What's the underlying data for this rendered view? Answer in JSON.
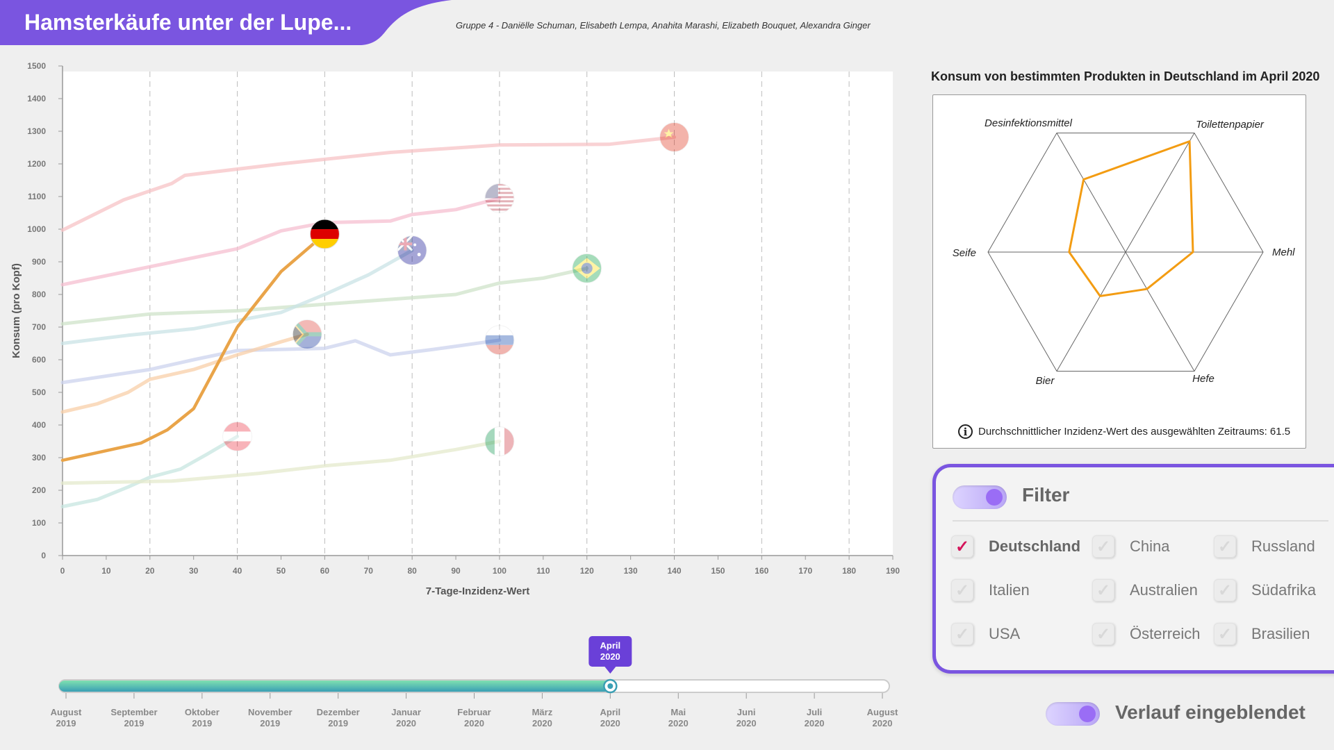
{
  "header": {
    "title": "Hamsterkäufe unter der Lupe...",
    "authors": "Gruppe 4 - Daniëlle Schuman, Elisabeth Lempa, Anahita Marashi, Elizabeth Bouquet, Alexandra Ginger",
    "banner_color": "#7a55e0"
  },
  "chart_data": [
    {
      "type": "line",
      "xlabel": "7-Tage-Inzidenz-Wert",
      "ylabel": "Konsum (pro Kopf)",
      "xlim": [
        0,
        190
      ],
      "ylim": [
        0,
        1500
      ],
      "x_ticks": [
        0,
        10,
        20,
        30,
        40,
        50,
        60,
        70,
        80,
        90,
        100,
        110,
        120,
        130,
        140,
        150,
        160,
        170,
        180,
        190
      ],
      "y_ticks": [
        0,
        100,
        200,
        300,
        400,
        500,
        600,
        700,
        800,
        900,
        1000,
        1100,
        1200,
        1300,
        1400,
        1500
      ],
      "grid": "vertical-dashed",
      "series": [
        {
          "country": "china",
          "color": "#f7c3c6",
          "highlight": false,
          "points": [
            [
              0,
              997
            ],
            [
              14,
              1090
            ],
            [
              25,
              1140
            ],
            [
              28,
              1165
            ],
            [
              50,
              1200
            ],
            [
              75,
              1235
            ],
            [
              100,
              1258
            ],
            [
              125,
              1260
            ],
            [
              140,
              1282
            ]
          ]
        },
        {
          "country": "usa",
          "color": "#f5bfd0",
          "highlight": false,
          "points": [
            [
              0,
              830
            ],
            [
              20,
              885
            ],
            [
              40,
              940
            ],
            [
              50,
              995
            ],
            [
              60,
              1020
            ],
            [
              75,
              1025
            ],
            [
              80,
              1045
            ],
            [
              90,
              1060
            ],
            [
              100,
              1095
            ]
          ]
        },
        {
          "country": "brasilien",
          "color": "#cfe3c9",
          "highlight": false,
          "points": [
            [
              0,
              710
            ],
            [
              20,
              740
            ],
            [
              40,
              750
            ],
            [
              60,
              770
            ],
            [
              80,
              790
            ],
            [
              90,
              800
            ],
            [
              100,
              835
            ],
            [
              110,
              850
            ],
            [
              120,
              880
            ]
          ]
        },
        {
          "country": "australien",
          "color": "#c9e3e6",
          "highlight": false,
          "points": [
            [
              0,
              650
            ],
            [
              15,
              675
            ],
            [
              30,
              695
            ],
            [
              40,
              720
            ],
            [
              50,
              745
            ],
            [
              60,
              800
            ],
            [
              70,
              860
            ],
            [
              80,
              935
            ]
          ]
        },
        {
          "country": "russland",
          "color": "#ccd3ee",
          "highlight": false,
          "points": [
            [
              0,
              530
            ],
            [
              20,
              570
            ],
            [
              30,
              600
            ],
            [
              40,
              628
            ],
            [
              60,
              635
            ],
            [
              67,
              658
            ],
            [
              75,
              615
            ],
            [
              85,
              632
            ],
            [
              100,
              660
            ]
          ]
        },
        {
          "country": "suedafrika",
          "color": "#f8cfa8",
          "highlight": false,
          "points": [
            [
              0,
              440
            ],
            [
              8,
              465
            ],
            [
              15,
              500
            ],
            [
              20,
              540
            ],
            [
              30,
              570
            ],
            [
              40,
              615
            ],
            [
              50,
              655
            ],
            [
              56,
              678
            ]
          ]
        },
        {
          "country": "oesterreich",
          "color": "#c7e6e0",
          "highlight": false,
          "points": [
            [
              0,
              150
            ],
            [
              8,
              172
            ],
            [
              15,
              210
            ],
            [
              20,
              240
            ],
            [
              27,
              265
            ],
            [
              33,
              310
            ],
            [
              40,
              365
            ]
          ]
        },
        {
          "country": "italien",
          "color": "#e4e9cc",
          "highlight": false,
          "points": [
            [
              0,
              222
            ],
            [
              25,
              228
            ],
            [
              45,
              252
            ],
            [
              60,
              275
            ],
            [
              75,
              292
            ],
            [
              90,
              325
            ],
            [
              100,
              350
            ]
          ]
        },
        {
          "country": "deutschland",
          "color": "#e9a449",
          "highlight": true,
          "points": [
            [
              0,
              292
            ],
            [
              18,
              345
            ],
            [
              24,
              385
            ],
            [
              30,
              450
            ],
            [
              40,
              700
            ],
            [
              50,
              870
            ],
            [
              60,
              985
            ]
          ]
        }
      ]
    },
    {
      "type": "radar",
      "title": "Konsum von bestimmten Produkten in Deutschland im April 2020",
      "axes": [
        "Desinfektionsmittel",
        "Toilettenpapier",
        "Mehl",
        "Hefe",
        "Bier",
        "Seife"
      ],
      "values": [
        0.61,
        0.93,
        0.49,
        0.31,
        0.37,
        0.41
      ],
      "color": "#f39c12",
      "info_text": "Durchschnittlicher Inzidenz-Wert des ausgewählten Zeitraums: 61.5"
    }
  ],
  "timeline": {
    "months": [
      {
        "m": "August",
        "y": "2019"
      },
      {
        "m": "September",
        "y": "2019"
      },
      {
        "m": "Oktober",
        "y": "2019"
      },
      {
        "m": "November",
        "y": "2019"
      },
      {
        "m": "Dezember",
        "y": "2019"
      },
      {
        "m": "Januar",
        "y": "2020"
      },
      {
        "m": "Februar",
        "y": "2020"
      },
      {
        "m": "März",
        "y": "2020"
      },
      {
        "m": "April",
        "y": "2020"
      },
      {
        "m": "Mai",
        "y": "2020"
      },
      {
        "m": "Juni",
        "y": "2020"
      },
      {
        "m": "Juli",
        "y": "2020"
      },
      {
        "m": "August",
        "y": "2020"
      }
    ],
    "selected_index": 8,
    "selected_label_month": "April",
    "selected_label_year": "2020"
  },
  "filter": {
    "label": "Filter",
    "countries": [
      {
        "name": "Deutschland",
        "checked": true
      },
      {
        "name": "China",
        "checked": false
      },
      {
        "name": "Russland",
        "checked": false
      },
      {
        "name": "Italien",
        "checked": false
      },
      {
        "name": "Australien",
        "checked": false
      },
      {
        "name": "Südafrika",
        "checked": false
      },
      {
        "name": "USA",
        "checked": false
      },
      {
        "name": "Österreich",
        "checked": false
      },
      {
        "name": "Brasilien",
        "checked": false
      }
    ]
  },
  "verlauf": {
    "label": "Verlauf eingeblendet"
  }
}
